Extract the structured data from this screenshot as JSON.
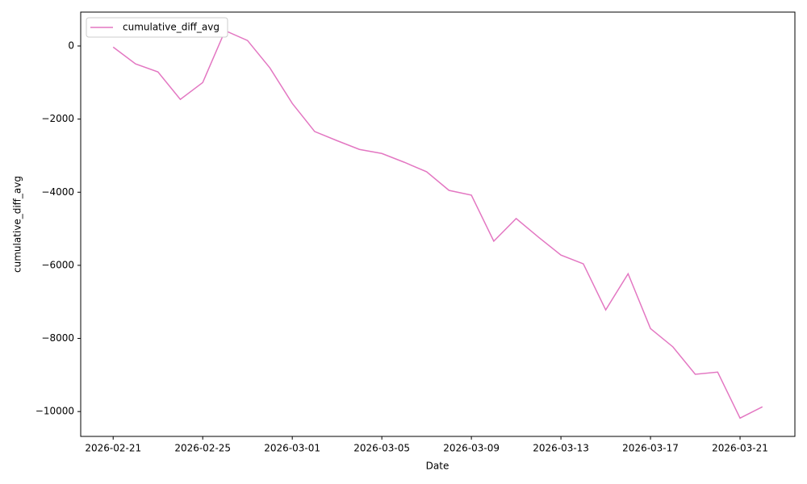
{
  "chart_data": {
    "type": "line",
    "xlabel": "Date",
    "ylabel": "cumulative_diff_avg",
    "x": [
      "2026-02-21",
      "2026-02-22",
      "2026-02-23",
      "2026-02-24",
      "2026-02-25",
      "2026-02-26",
      "2026-02-27",
      "2026-02-28",
      "2026-03-01",
      "2026-03-02",
      "2026-03-03",
      "2026-03-04",
      "2026-03-05",
      "2026-03-06",
      "2026-03-07",
      "2026-03-08",
      "2026-03-09",
      "2026-03-10",
      "2026-03-11",
      "2026-03-12",
      "2026-03-13",
      "2026-03-14",
      "2026-03-15",
      "2026-03-16",
      "2026-03-17",
      "2026-03-18",
      "2026-03-19",
      "2026-03-20",
      "2026-03-21",
      "2026-03-22"
    ],
    "series": [
      {
        "name": "cumulative_diff_avg",
        "color": "#e377c2",
        "values": [
          -30,
          -490,
          -710,
          -1460,
          -1000,
          420,
          150,
          -600,
          -1570,
          -2340,
          -2590,
          -2830,
          -2940,
          -3180,
          -3440,
          -3950,
          -4080,
          -5340,
          -4720,
          -5230,
          -5720,
          -5960,
          -7220,
          -6230,
          -7730,
          -8230,
          -8980,
          -8920,
          -10180,
          -9870
        ]
      }
    ],
    "ylim": [
      -10680,
      927
    ],
    "yticks": [
      {
        "value": -10000,
        "label": "−10000"
      },
      {
        "value": -8000,
        "label": "−8000"
      },
      {
        "value": -6000,
        "label": "−6000"
      },
      {
        "value": -4000,
        "label": "−4000"
      },
      {
        "value": -2000,
        "label": "−2000"
      },
      0
    ],
    "xticks": [
      "2026-02-21",
      "2026-02-25",
      "2026-03-01",
      "2026-03-05",
      "2026-03-09",
      "2026-03-13",
      "2026-03-17",
      "2026-03-21"
    ],
    "legend": "upper left",
    "grid": false
  }
}
